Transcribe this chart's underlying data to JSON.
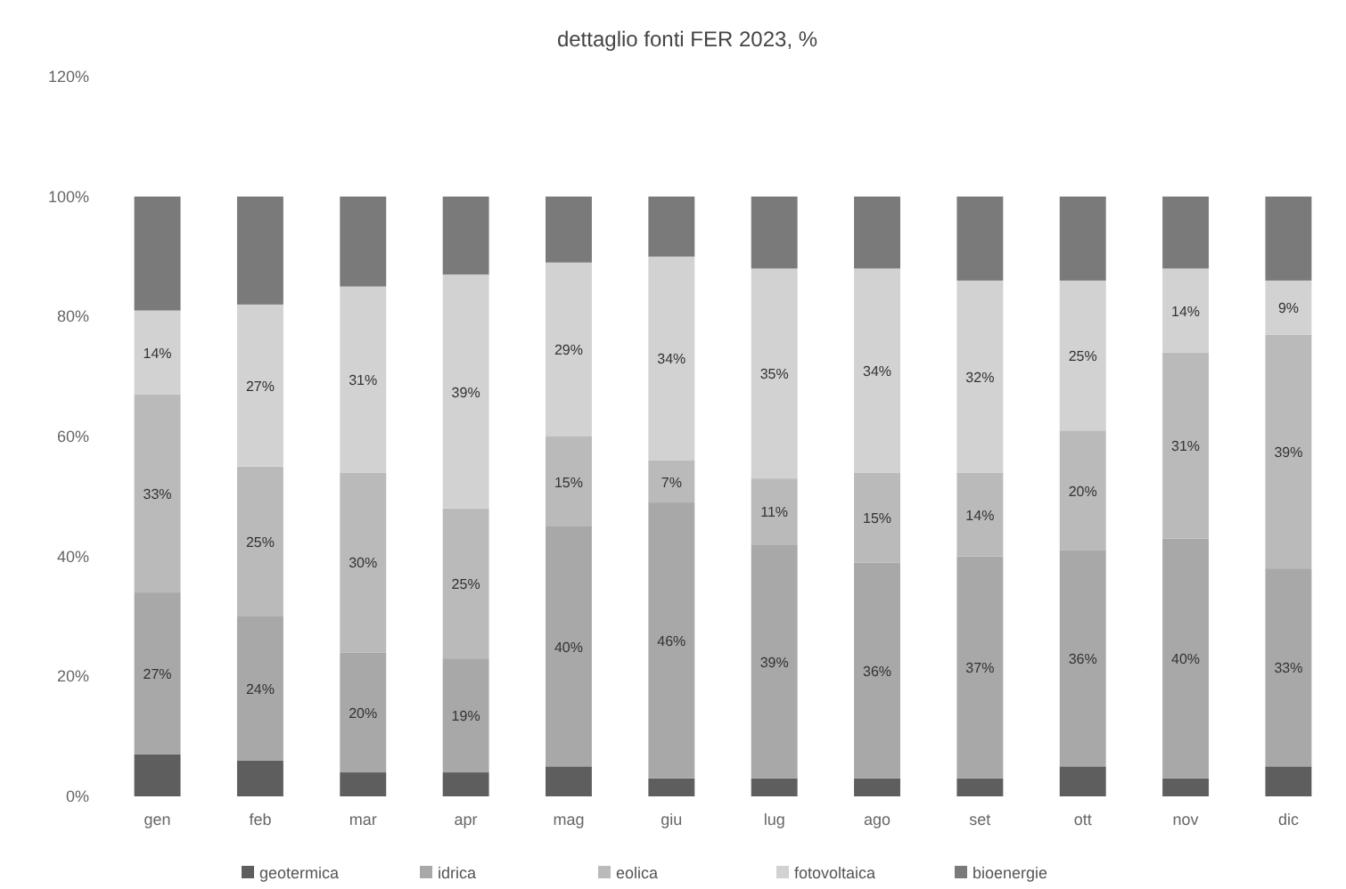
{
  "chart_data": {
    "type": "bar",
    "stacked": true,
    "title": "dettaglio fonti FER 2023, %",
    "categories": [
      "gen",
      "feb",
      "mar",
      "apr",
      "mag",
      "giu",
      "lug",
      "ago",
      "set",
      "ott",
      "nov",
      "dic"
    ],
    "series": [
      {
        "name": "geotermica",
        "color": "#5e5e5e",
        "values": [
          7,
          6,
          4,
          4,
          5,
          3,
          3,
          3,
          3,
          5,
          3,
          5
        ]
      },
      {
        "name": "idrica",
        "color": "#a8a8a8",
        "values": [
          27,
          24,
          20,
          19,
          40,
          46,
          39,
          36,
          37,
          36,
          40,
          33
        ],
        "value_labels": [
          "27%",
          "24%",
          "20%",
          "19%",
          "40%",
          "46%",
          "39%",
          "36%",
          "37%",
          "36%",
          "40%",
          "33%"
        ]
      },
      {
        "name": "eolica",
        "color": "#bababa",
        "values": [
          33,
          25,
          30,
          25,
          15,
          7,
          11,
          15,
          14,
          20,
          31,
          39
        ],
        "value_labels": [
          "33%",
          "25%",
          "30%",
          "25%",
          "15%",
          "7%",
          "11%",
          "15%",
          "14%",
          "20%",
          "31%",
          "39%"
        ]
      },
      {
        "name": "fotovoltaica",
        "color": "#d2d2d2",
        "values": [
          14,
          27,
          31,
          39,
          29,
          34,
          35,
          34,
          32,
          25,
          14,
          9
        ],
        "value_labels": [
          "14%",
          "27%",
          "31%",
          "39%",
          "29%",
          "34%",
          "35%",
          "34%",
          "32%",
          "25%",
          "14%",
          "9%"
        ]
      },
      {
        "name": "bioenergie",
        "color": "#7a7a7a",
        "values": [
          19,
          18,
          15,
          13,
          11,
          10,
          12,
          12,
          14,
          14,
          12,
          14
        ]
      }
    ],
    "ylim": [
      0,
      120
    ],
    "yticks": [
      {
        "value": 0,
        "label": "0%"
      },
      {
        "value": 20,
        "label": "20%"
      },
      {
        "value": 40,
        "label": "40%"
      },
      {
        "value": 60,
        "label": "60%"
      },
      {
        "value": 80,
        "label": "80%"
      },
      {
        "value": 100,
        "label": "100%"
      },
      {
        "value": 120,
        "label": "120%"
      }
    ],
    "grid": false,
    "legend": "bottom"
  }
}
